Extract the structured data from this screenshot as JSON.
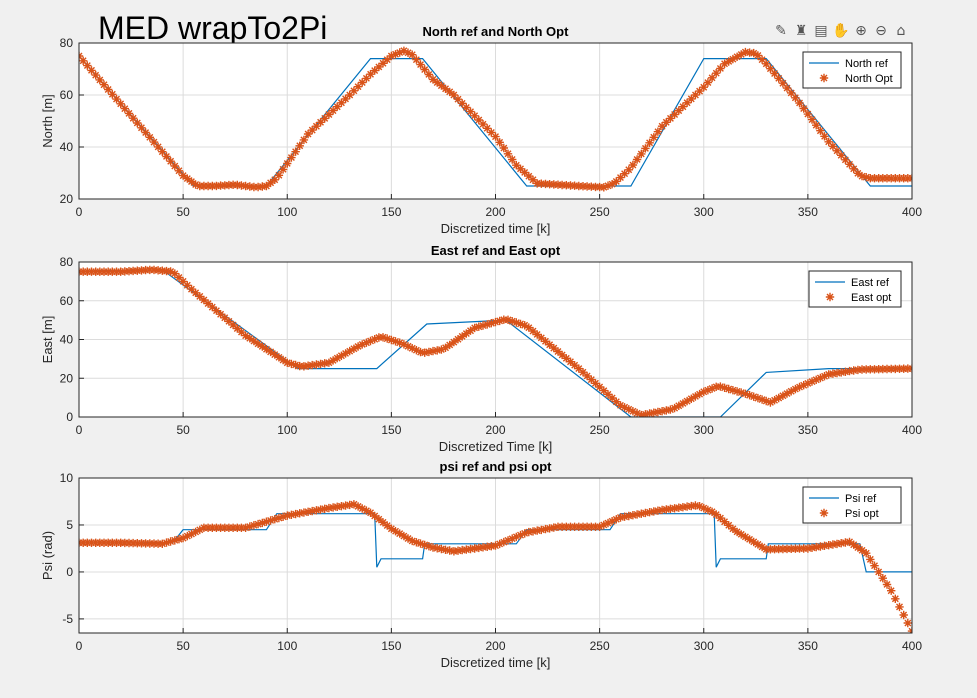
{
  "figure_title": "MED wrapTo2Pi",
  "toolbar": {
    "icons": [
      "export-icon",
      "brush-icon",
      "data-tips-icon",
      "pan-icon",
      "zoom-in-icon",
      "zoom-out-icon",
      "home-icon"
    ],
    "glyphs": [
      "✎",
      "♜",
      "▤",
      "✋",
      "⊕",
      "⊖",
      "⌂"
    ]
  },
  "colors": {
    "ref": "#0072bd",
    "opt": "#d95319",
    "grid": "#dcdcdc",
    "axis": "#262626"
  },
  "chart_data": [
    {
      "type": "line",
      "title": "North ref and North Opt",
      "xlabel": "Discretized time [k]",
      "ylabel": "North [m]",
      "xlim": [
        0,
        400
      ],
      "ylim": [
        20,
        80
      ],
      "xticks": [
        0,
        50,
        100,
        150,
        200,
        250,
        300,
        350,
        400
      ],
      "yticks": [
        20,
        40,
        60,
        80
      ],
      "grid": true,
      "legend_position": "top-right",
      "series": [
        {
          "name": "North ref",
          "style": "line",
          "x": [
            0,
            55,
            70,
            90,
            140,
            165,
            215,
            250,
            265,
            300,
            330,
            380,
            400
          ],
          "y": [
            75,
            25,
            25,
            25,
            74,
            74,
            25,
            25,
            25,
            74,
            74,
            25,
            25
          ]
        },
        {
          "name": "North Opt",
          "style": "marker",
          "x": [
            0,
            25,
            50,
            57,
            65,
            75,
            85,
            90,
            95,
            110,
            130,
            140,
            150,
            156,
            160,
            170,
            180,
            200,
            210,
            220,
            240,
            252,
            257,
            265,
            280,
            300,
            310,
            320,
            325,
            330,
            345,
            360,
            375,
            380,
            400
          ],
          "y": [
            75,
            52,
            29,
            25,
            25,
            25.5,
            24.5,
            25,
            28,
            45,
            60,
            68,
            75,
            77,
            75.5,
            66,
            60,
            44,
            33,
            26,
            25,
            24.5,
            26,
            32,
            48,
            63,
            72,
            76.5,
            76,
            72,
            58,
            42,
            29,
            28,
            28
          ]
        }
      ]
    },
    {
      "type": "line",
      "title": "East ref and East opt",
      "xlabel": "Discretized Time [k]",
      "ylabel": "East [m]",
      "xlim": [
        0,
        400
      ],
      "ylim": [
        0,
        80
      ],
      "xticks": [
        0,
        50,
        100,
        150,
        200,
        250,
        300,
        350,
        400
      ],
      "yticks": [
        0,
        20,
        40,
        60,
        80
      ],
      "grid": true,
      "legend_position": "top-right",
      "series": [
        {
          "name": "East ref",
          "style": "line",
          "x": [
            0,
            40,
            105,
            143,
            167,
            205,
            265,
            308,
            330,
            360,
            400
          ],
          "y": [
            75,
            76,
            25,
            25,
            48,
            50,
            0,
            0,
            23,
            25,
            25
          ]
        },
        {
          "name": "East opt",
          "style": "marker",
          "x": [
            0,
            20,
            35,
            45,
            55,
            80,
            100,
            107,
            120,
            135,
            145,
            155,
            165,
            175,
            190,
            205,
            215,
            240,
            260,
            270,
            285,
            300,
            307,
            320,
            332,
            345,
            360,
            375,
            400
          ],
          "y": [
            75,
            75,
            76,
            75,
            65,
            42,
            28,
            26,
            28,
            37,
            41.5,
            38,
            33,
            35,
            46,
            50.5,
            47,
            25,
            6,
            1,
            4,
            13,
            16,
            12,
            7.5,
            15,
            22,
            24.5,
            25
          ]
        }
      ]
    },
    {
      "type": "line",
      "title": "psi ref and psi opt",
      "xlabel": "Discretized time [k]",
      "ylabel": "Psi (rad)",
      "xlim": [
        0,
        400
      ],
      "ylim": [
        -6.5,
        10
      ],
      "xticks": [
        0,
        50,
        100,
        150,
        200,
        250,
        300,
        350,
        400
      ],
      "yticks": [
        -5,
        0,
        5,
        10
      ],
      "grid": true,
      "legend_position": "top-right",
      "series": [
        {
          "name": "Psi ref",
          "style": "line",
          "x": [
            0,
            45,
            50,
            90,
            95,
            142,
            143,
            145,
            165,
            166,
            210,
            215,
            255,
            260,
            305,
            306,
            308,
            330,
            331,
            375,
            378,
            400
          ],
          "y": [
            3.1,
            3.1,
            4.5,
            4.5,
            6.2,
            6.2,
            0.5,
            1.4,
            1.4,
            3.0,
            3.0,
            4.5,
            4.5,
            6.2,
            6.2,
            0.5,
            1.4,
            1.4,
            3.0,
            3.0,
            0.0,
            0.0
          ]
        },
        {
          "name": "Psi opt",
          "style": "marker",
          "x": [
            0,
            20,
            40,
            50,
            60,
            80,
            100,
            120,
            132,
            140,
            150,
            160,
            170,
            180,
            200,
            215,
            230,
            250,
            260,
            280,
            297,
            305,
            315,
            330,
            350,
            370,
            378,
            390,
            400
          ],
          "y": [
            3.1,
            3.1,
            3.0,
            3.6,
            4.7,
            4.7,
            6.0,
            6.8,
            7.2,
            6.3,
            4.6,
            3.3,
            2.6,
            2.2,
            2.8,
            4.2,
            4.8,
            4.8,
            5.8,
            6.6,
            7.1,
            6.3,
            4.4,
            2.4,
            2.5,
            3.2,
            2.0,
            -2.0,
            -6.3
          ]
        }
      ]
    }
  ]
}
